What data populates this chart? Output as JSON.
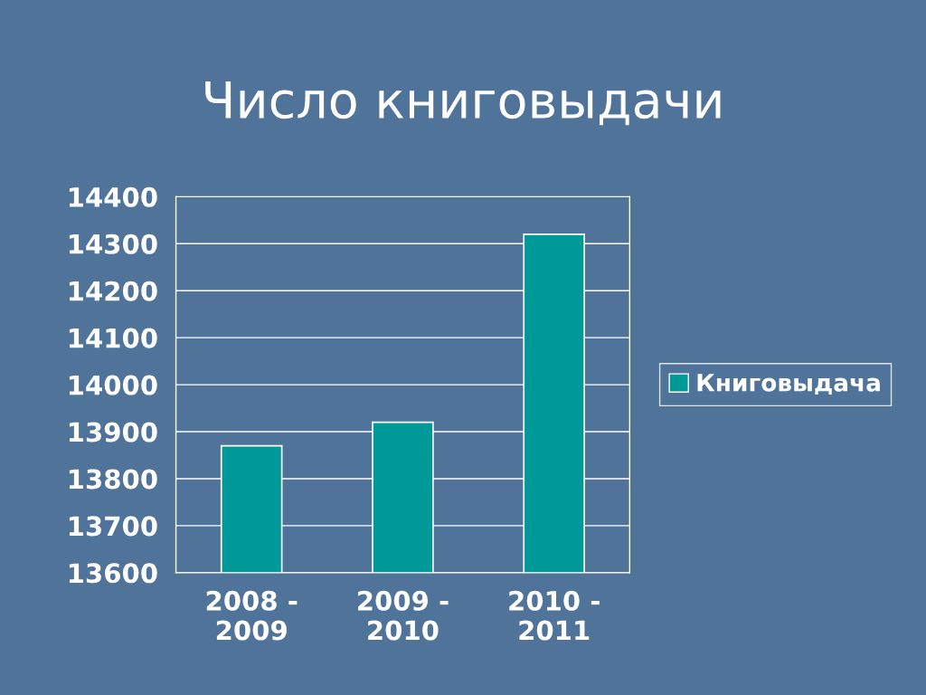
{
  "chart_data": {
    "type": "bar",
    "title": "Число книговыдачи",
    "categories": [
      "2008 - 2009",
      "2009 - 2010",
      "2010 - 2011"
    ],
    "series": [
      {
        "name": "Книговыдача",
        "color": "#009999",
        "values": [
          13870,
          13920,
          14320
        ]
      }
    ],
    "ylim": [
      13600,
      14400
    ],
    "yticks": [
      13600,
      13700,
      13800,
      13900,
      14000,
      14100,
      14200,
      14300,
      14400
    ],
    "grid": "y",
    "legend": "right"
  }
}
